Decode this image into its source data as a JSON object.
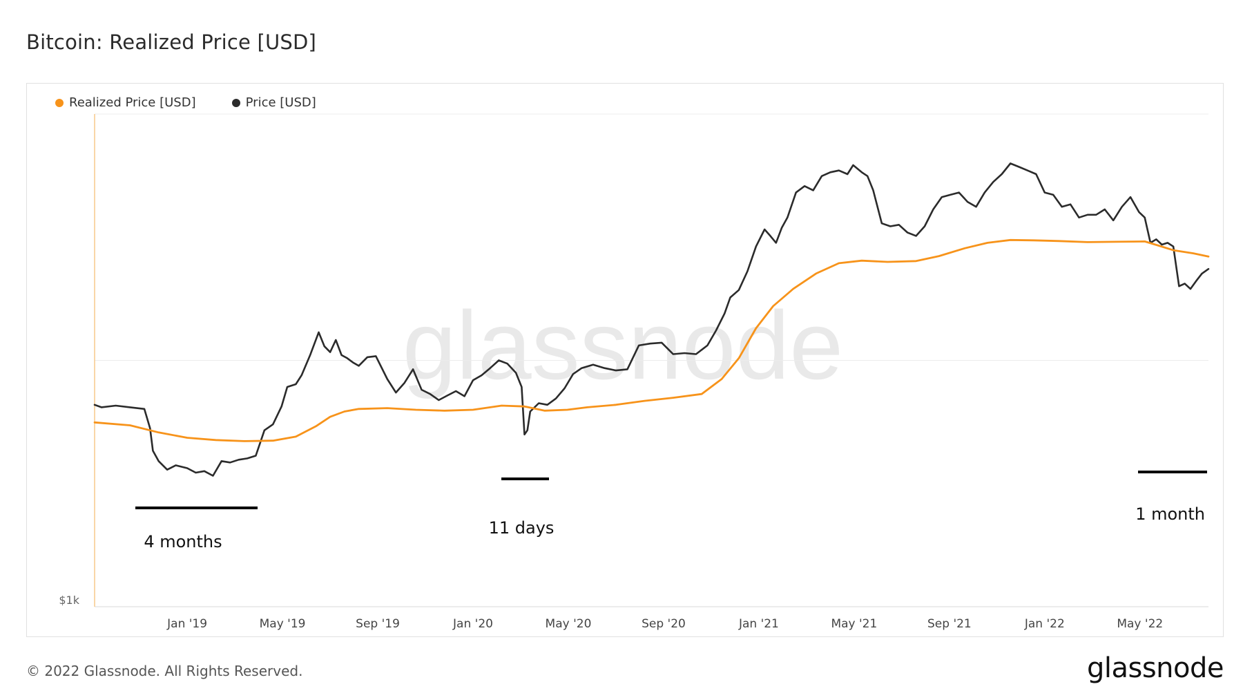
{
  "page": {
    "title": "Bitcoin: Realized Price [USD]",
    "copyright": "© 2022 Glassnode. All Rights Reserved.",
    "logo": "glassnode",
    "watermark": "glassnode"
  },
  "colors": {
    "realized": "#f7931a",
    "price": "#2b2b2b",
    "grid": "#ececec",
    "axis_text": "#444444"
  },
  "chart_data": {
    "type": "line",
    "title": "Bitcoin: Realized Price [USD]",
    "xlabel": "",
    "ylabel": "",
    "y_scale": "log",
    "ylim": [
      1000,
      100000
    ],
    "y_tick_labels": [
      "$1k"
    ],
    "x_ticks": [
      "Jan '19",
      "May '19",
      "Sep '19",
      "Jan '20",
      "May '20",
      "Sep '20",
      "Jan '21",
      "May '21",
      "Sep '21",
      "Jan '22",
      "May '22"
    ],
    "x_tick_positions": [
      2019.0,
      2019.3333,
      2019.6667,
      2020.0,
      2020.3333,
      2020.6667,
      2021.0,
      2021.3333,
      2021.6667,
      2022.0,
      2022.3333
    ],
    "xlim": [
      2018.676,
      2022.573
    ],
    "legend": [
      "Realized Price [USD]",
      "Price [USD]"
    ],
    "series": [
      {
        "name": "Realized Price [USD]",
        "x": [
          2018.676,
          2018.8,
          2018.9,
          2019.0,
          2019.1,
          2019.2,
          2019.3,
          2019.38,
          2019.45,
          2019.5,
          2019.55,
          2019.6,
          2019.7,
          2019.8,
          2019.9,
          2020.0,
          2020.1,
          2020.18,
          2020.25,
          2020.33,
          2020.4,
          2020.5,
          2020.6,
          2020.7,
          2020.8,
          2020.87,
          2020.93,
          2020.99,
          2021.05,
          2021.12,
          2021.2,
          2021.28,
          2021.36,
          2021.45,
          2021.55,
          2021.63,
          2021.72,
          2021.8,
          2021.88,
          2021.96,
          2022.05,
          2022.15,
          2022.25,
          2022.35,
          2022.4,
          2022.45,
          2022.52,
          2022.573
        ],
        "y": [
          5600,
          5450,
          5100,
          4850,
          4750,
          4700,
          4720,
          4900,
          5400,
          5900,
          6200,
          6350,
          6400,
          6300,
          6250,
          6300,
          6550,
          6500,
          6250,
          6300,
          6450,
          6600,
          6850,
          7050,
          7300,
          8400,
          10200,
          13500,
          16600,
          19500,
          22500,
          24800,
          25400,
          25100,
          25300,
          26500,
          28500,
          30000,
          30800,
          30700,
          30500,
          30200,
          30300,
          30400,
          29200,
          28000,
          27200,
          26400
        ]
      },
      {
        "name": "Price [USD]",
        "x": [
          2018.676,
          2018.7,
          2018.75,
          2018.8,
          2018.85,
          2018.87,
          2018.88,
          2018.9,
          2018.93,
          2018.96,
          2019.0,
          2019.03,
          2019.06,
          2019.09,
          2019.12,
          2019.15,
          2019.18,
          2019.21,
          2019.24,
          2019.27,
          2019.3,
          2019.33,
          2019.35,
          2019.38,
          2019.4,
          2019.43,
          2019.46,
          2019.48,
          2019.5,
          2019.52,
          2019.54,
          2019.56,
          2019.58,
          2019.6,
          2019.63,
          2019.66,
          2019.7,
          2019.73,
          2019.76,
          2019.79,
          2019.82,
          2019.85,
          2019.88,
          2019.91,
          2019.94,
          2019.97,
          2020.0,
          2020.03,
          2020.06,
          2020.09,
          2020.12,
          2020.15,
          2020.17,
          2020.18,
          2020.19,
          2020.2,
          2020.23,
          2020.26,
          2020.29,
          2020.32,
          2020.35,
          2020.38,
          2020.42,
          2020.46,
          2020.5,
          2020.54,
          2020.58,
          2020.62,
          2020.66,
          2020.7,
          2020.74,
          2020.78,
          2020.82,
          2020.85,
          2020.88,
          2020.9,
          2020.93,
          2020.96,
          2020.99,
          2021.02,
          2021.04,
          2021.06,
          2021.08,
          2021.1,
          2021.13,
          2021.16,
          2021.19,
          2021.22,
          2021.25,
          2021.28,
          2021.31,
          2021.33,
          2021.36,
          2021.38,
          2021.4,
          2021.43,
          2021.46,
          2021.49,
          2021.52,
          2021.55,
          2021.58,
          2021.61,
          2021.64,
          2021.67,
          2021.7,
          2021.73,
          2021.76,
          2021.79,
          2021.82,
          2021.85,
          2021.88,
          2021.91,
          2021.94,
          2021.97,
          2022.0,
          2022.03,
          2022.06,
          2022.09,
          2022.12,
          2022.15,
          2022.18,
          2022.21,
          2022.24,
          2022.27,
          2022.3,
          2022.33,
          2022.35,
          2022.37,
          2022.39,
          2022.41,
          2022.43,
          2022.45,
          2022.47,
          2022.49,
          2022.51,
          2022.53,
          2022.55,
          2022.573
        ],
        "y": [
          6600,
          6450,
          6550,
          6450,
          6350,
          5300,
          4300,
          3900,
          3600,
          3750,
          3650,
          3500,
          3550,
          3400,
          3900,
          3850,
          3950,
          4000,
          4100,
          5200,
          5500,
          6500,
          7800,
          8000,
          8700,
          10500,
          13000,
          11400,
          10800,
          12100,
          10500,
          10200,
          9800,
          9500,
          10300,
          10400,
          8400,
          7400,
          8100,
          9200,
          7600,
          7300,
          6900,
          7200,
          7500,
          7150,
          8300,
          8700,
          9300,
          10000,
          9700,
          8900,
          7800,
          5000,
          5200,
          6200,
          6700,
          6600,
          7000,
          7700,
          8800,
          9300,
          9600,
          9300,
          9100,
          9200,
          11500,
          11700,
          11800,
          10600,
          10700,
          10600,
          11500,
          13200,
          15500,
          18000,
          19300,
          23000,
          29000,
          34000,
          32000,
          30000,
          34500,
          38000,
          48000,
          51000,
          49000,
          56000,
          58000,
          59000,
          57000,
          62000,
          58000,
          56000,
          49000,
          36000,
          35000,
          35500,
          33000,
          32000,
          35000,
          41000,
          46000,
          47000,
          48000,
          44000,
          42000,
          48000,
          53000,
          57000,
          63000,
          61000,
          59000,
          57000,
          48000,
          47000,
          42000,
          43000,
          38000,
          39000,
          39000,
          41000,
          37000,
          42000,
          46000,
          40000,
          38000,
          30000,
          31000,
          29500,
          30000,
          29000,
          20000,
          20500,
          19500,
          21000,
          22500,
          23500
        ]
      }
    ]
  },
  "annotations": [
    {
      "label": "4 months"
    },
    {
      "label": "11 days"
    },
    {
      "label": "1 month"
    }
  ]
}
